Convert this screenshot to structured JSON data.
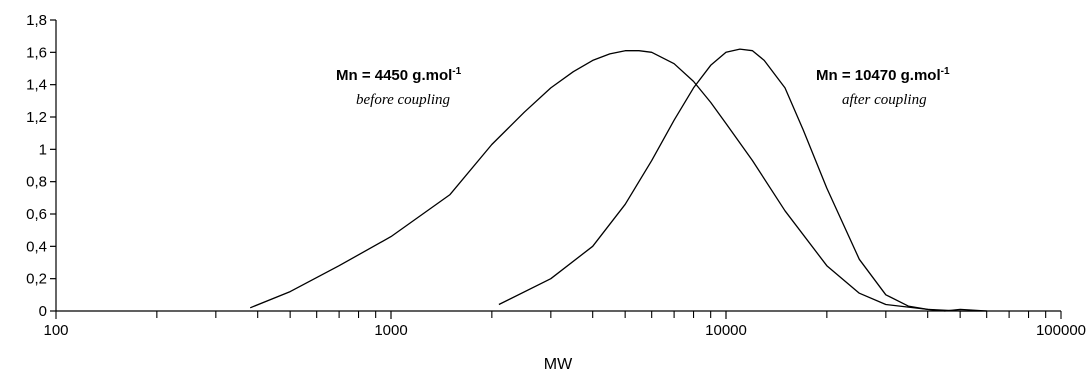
{
  "chart_data": {
    "type": "line",
    "xlabel": "MW",
    "ylabel": "",
    "xscale": "log",
    "xlim": [
      100,
      100000
    ],
    "ylim": [
      0,
      1.8
    ],
    "x_tick_labels": [
      "100",
      "1000",
      "10000",
      "100000"
    ],
    "y_tick_labels": [
      "0",
      "0,2",
      "0,4",
      "0,6",
      "0,8",
      "1",
      "1,2",
      "1,4",
      "1,6",
      "1,8"
    ],
    "grid": false,
    "series": [
      {
        "color": "#000000",
        "x": [
          380,
          500,
          700,
          1000,
          1500,
          2000,
          2500,
          3000,
          3500,
          4000,
          4500,
          5000,
          5500,
          6000,
          7000,
          8000,
          9000,
          10000,
          12000,
          15000,
          20000,
          25000,
          30000,
          40000,
          50000,
          60000
        ],
        "y": [
          0.02,
          0.12,
          0.28,
          0.46,
          0.72,
          1.03,
          1.23,
          1.38,
          1.48,
          1.55,
          1.59,
          1.61,
          1.61,
          1.6,
          1.53,
          1.42,
          1.29,
          1.16,
          0.93,
          0.62,
          0.28,
          0.11,
          0.04,
          0.01,
          0.0,
          0.0
        ]
      },
      {
        "color": "#000000",
        "x": [
          2100,
          3000,
          4000,
          5000,
          6000,
          7000,
          8000,
          9000,
          10000,
          11000,
          12000,
          13000,
          15000,
          17000,
          20000,
          25000,
          30000,
          35000,
          40000,
          45000,
          50000,
          60000
        ],
        "y": [
          0.04,
          0.2,
          0.4,
          0.66,
          0.93,
          1.18,
          1.38,
          1.52,
          1.6,
          1.62,
          1.61,
          1.55,
          1.38,
          1.12,
          0.76,
          0.32,
          0.1,
          0.03,
          0.01,
          0.0,
          0.01,
          0.0
        ]
      }
    ],
    "annotations": [
      {
        "main": "Mn = 4450 g.mol",
        "sup": "-1",
        "sub": "before coupling"
      },
      {
        "main": "Mn = 10470 g.mol",
        "sup": "-1",
        "sub": "after coupling"
      }
    ]
  }
}
